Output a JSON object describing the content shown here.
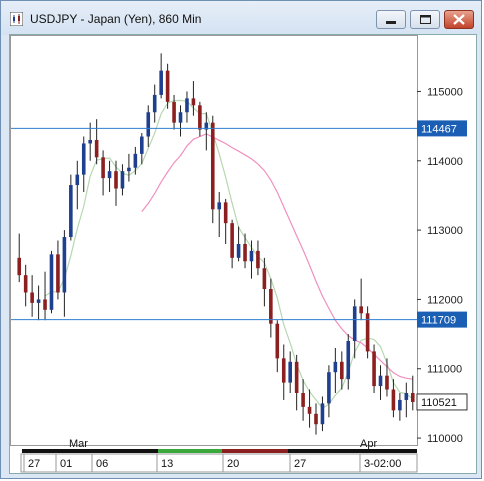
{
  "window": {
    "title": "USDJPY - Japan (Yen), 860 Min",
    "buttons": [
      "minimize",
      "maximize",
      "close"
    ]
  },
  "colors": {
    "up_candle": "#1f3f8f",
    "down_candle": "#8c1f1f",
    "ma_fast": "#b6d7b0",
    "ma_slow": "#f08fbf",
    "horizontal_line": "#2f7fd0",
    "price_box": "#1a5fb4"
  },
  "price_labels": [
    "115000",
    "114000",
    "113000",
    "112000",
    "111000",
    "110000"
  ],
  "hline_labels": [
    "114467",
    "111709"
  ],
  "last_price_label": "110521",
  "time_labels_upper": [
    "Mar",
    "Apr"
  ],
  "time_labels_lower": [
    "27",
    "01",
    "06",
    "13",
    "20",
    "27",
    "3-02:00"
  ],
  "chart_data": {
    "type": "candlestick",
    "instrument": "USDJPY",
    "ylim": [
      109900,
      115800
    ],
    "hlines": [
      114467,
      111709
    ],
    "last": 110521,
    "candles": [
      [
        112600,
        112950,
        112250,
        112350
      ],
      [
        112350,
        112500,
        111900,
        112100
      ],
      [
        112100,
        112350,
        111750,
        111950
      ],
      [
        111950,
        112200,
        111700,
        112000
      ],
      [
        112000,
        112400,
        111700,
        111850
      ],
      [
        111850,
        112700,
        111800,
        112650
      ],
      [
        112650,
        112850,
        112000,
        112100
      ],
      [
        112100,
        113000,
        111750,
        112900
      ],
      [
        112900,
        113800,
        112850,
        113650
      ],
      [
        113650,
        114000,
        113300,
        113800
      ],
      [
        113800,
        114350,
        113550,
        114250
      ],
      [
        114250,
        114550,
        114000,
        114300
      ],
      [
        114300,
        114600,
        113950,
        114050
      ],
      [
        114050,
        114150,
        113500,
        113750
      ],
      [
        113750,
        114000,
        113550,
        113850
      ],
      [
        113850,
        114000,
        113350,
        113600
      ],
      [
        113600,
        113950,
        113500,
        113850
      ],
      [
        113850,
        114100,
        113700,
        113900
      ],
      [
        113900,
        114200,
        113800,
        114100
      ],
      [
        114100,
        114400,
        113950,
        114350
      ],
      [
        114350,
        114800,
        114200,
        114700
      ],
      [
        114700,
        115100,
        114550,
        114950
      ],
      [
        114950,
        115550,
        114900,
        115300
      ],
      [
        115300,
        115400,
        114750,
        114850
      ],
      [
        114850,
        114950,
        114450,
        114550
      ],
      [
        114550,
        114800,
        114350,
        114700
      ],
      [
        114700,
        115000,
        114550,
        114900
      ],
      [
        114900,
        115150,
        114650,
        114800
      ],
      [
        114800,
        114850,
        114350,
        114450
      ],
      [
        114450,
        114700,
        114150,
        114550
      ],
      [
        114550,
        114650,
        113100,
        113300
      ],
      [
        113300,
        113550,
        112900,
        113400
      ],
      [
        113400,
        113450,
        112800,
        113100
      ],
      [
        113100,
        113150,
        112450,
        112600
      ],
      [
        112600,
        113050,
        112550,
        112800
      ],
      [
        112800,
        112950,
        112450,
        112550
      ],
      [
        112550,
        112850,
        112300,
        112700
      ],
      [
        112700,
        112850,
        112350,
        112450
      ],
      [
        112450,
        112600,
        111900,
        112150
      ],
      [
        112150,
        112300,
        111450,
        111650
      ],
      [
        111650,
        111700,
        110950,
        111150
      ],
      [
        111150,
        111350,
        110550,
        110800
      ],
      [
        110800,
        111250,
        110650,
        111100
      ],
      [
        111100,
        111200,
        110400,
        110650
      ],
      [
        110650,
        110850,
        110250,
        110450
      ],
      [
        110450,
        110700,
        110150,
        110350
      ],
      [
        110350,
        110500,
        110050,
        110200
      ],
      [
        110200,
        110600,
        110100,
        110500
      ],
      [
        110500,
        111050,
        110300,
        110950
      ],
      [
        110950,
        111300,
        110650,
        111100
      ],
      [
        111100,
        111250,
        110700,
        110850
      ],
      [
        110850,
        111500,
        110700,
        111400
      ],
      [
        111400,
        112000,
        111150,
        111900
      ],
      [
        111900,
        112300,
        111700,
        111800
      ],
      [
        111800,
        111900,
        111150,
        111250
      ],
      [
        111250,
        111350,
        110650,
        110750
      ],
      [
        110750,
        111050,
        110550,
        110900
      ],
      [
        110900,
        111150,
        110600,
        110700
      ],
      [
        110700,
        110850,
        110300,
        110400
      ],
      [
        110400,
        110650,
        110250,
        110550
      ],
      [
        110550,
        110800,
        110300,
        110650
      ],
      [
        110650,
        110900,
        110400,
        110521
      ]
    ]
  }
}
